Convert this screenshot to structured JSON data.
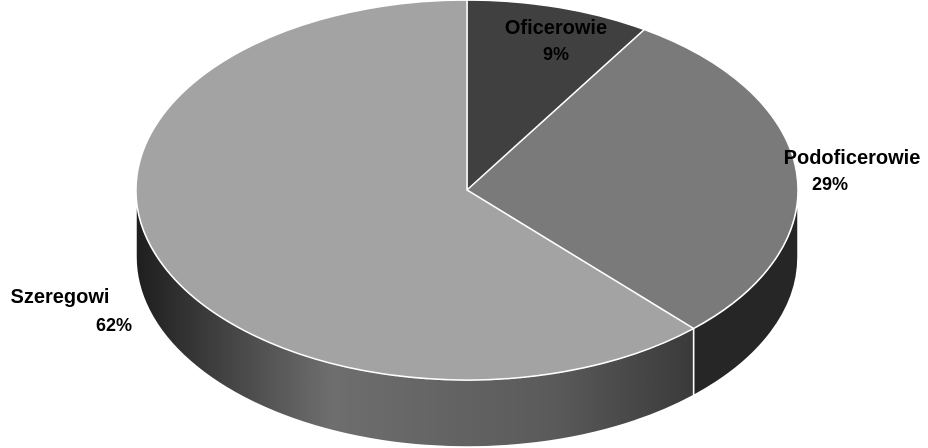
{
  "chart_data": {
    "type": "pie",
    "style": "3d",
    "title": "",
    "legend": "none",
    "slices": [
      {
        "label": "Oficerowie",
        "value": 9,
        "display": "9%",
        "top_color": "#404040",
        "side_color": "#2a2a2a"
      },
      {
        "label": "Podoficerowie",
        "value": 29,
        "display": "29%",
        "top_color": "#7a7a7a",
        "side_color": "#262626"
      },
      {
        "label": "Szeregowi",
        "value": 62,
        "display": "62%",
        "top_color": "#a3a3a3",
        "side_color": "#5a5a5a"
      }
    ]
  }
}
